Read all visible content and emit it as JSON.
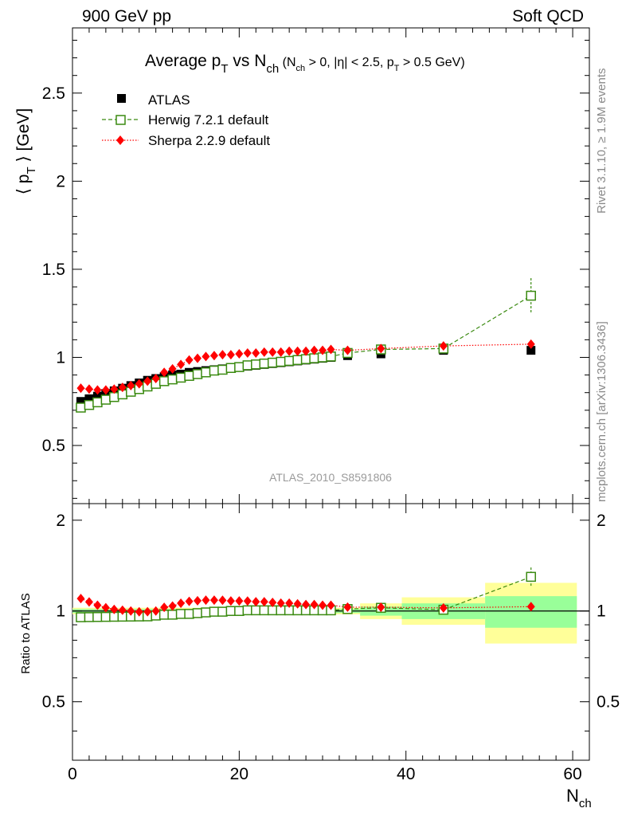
{
  "header": {
    "left": "900 GeV pp",
    "right": "Soft QCD"
  },
  "side_labels": {
    "rivet": "Rivet 3.1.10, ≥ 1.9M events",
    "mcplots": "mcplots.cern.ch [arXiv:1306.3436]"
  },
  "chart_data": {
    "type": "scatter",
    "title": {
      "main": "Average p",
      "main_sub": "T",
      "vs": " vs N",
      "vs_sub": "ch",
      "cond_open": " (N",
      "cond_sub1": "ch",
      "cond_mid": " > 0, |η| < 2.5, p",
      "cond_sub2": "T",
      "cond_close": " > 0.5 GeV)"
    },
    "analysis_label": "ATLAS_2010_S8591806",
    "ylabel_main": "⟨ p",
    "ylabel_sub": "T",
    "ylabel_tail": " ⟩ [GeV]",
    "ylabel_ratio": "Ratio to ATLAS",
    "xlabel_main": "N",
    "xlabel_sub": "ch",
    "xlim": [
      0,
      62
    ],
    "ylim": [
      0.17,
      2.87
    ],
    "ratio_ylim": [
      0.32,
      2.27
    ],
    "x_ticks": [
      "0",
      "20",
      "40",
      "60"
    ],
    "y_ticks": [
      "0.5",
      "1",
      "1.5",
      "2",
      "2.5"
    ],
    "ratio_ticks": [
      "0.5",
      "1",
      "2"
    ],
    "x": [
      1,
      2,
      3,
      4,
      5,
      6,
      7,
      8,
      9,
      10,
      11,
      12,
      13,
      14,
      15,
      16,
      17,
      18,
      19,
      20,
      21,
      22,
      23,
      24,
      25,
      26,
      27,
      28,
      29,
      30,
      31,
      33,
      37,
      44.5,
      55
    ],
    "series": [
      {
        "name": "ATLAS",
        "values": [
          0.75,
          0.765,
          0.78,
          0.795,
          0.81,
          0.825,
          0.84,
          0.855,
          0.87,
          0.88,
          0.89,
          0.9,
          0.905,
          0.915,
          0.92,
          0.925,
          0.93,
          0.935,
          0.94,
          0.945,
          0.95,
          0.955,
          0.96,
          0.965,
          0.97,
          0.975,
          0.98,
          0.985,
          0.99,
          0.995,
          1.0,
          1.01,
          1.02,
          1.04,
          1.04
        ],
        "color": "#000000"
      },
      {
        "name": "Herwig 7.2.1 default",
        "values": [
          0.715,
          0.73,
          0.745,
          0.76,
          0.775,
          0.79,
          0.805,
          0.82,
          0.835,
          0.85,
          0.865,
          0.875,
          0.885,
          0.895,
          0.905,
          0.915,
          0.925,
          0.93,
          0.94,
          0.945,
          0.955,
          0.96,
          0.965,
          0.97,
          0.975,
          0.98,
          0.985,
          0.99,
          0.995,
          1.0,
          1.005,
          1.025,
          1.045,
          1.05,
          1.35
        ],
        "color": "#3a8a10"
      },
      {
        "name": "Sherpa 2.2.9 default",
        "values": [
          0.825,
          0.82,
          0.815,
          0.815,
          0.82,
          0.83,
          0.84,
          0.85,
          0.865,
          0.88,
          0.915,
          0.935,
          0.96,
          0.985,
          0.995,
          1.005,
          1.01,
          1.015,
          1.015,
          1.02,
          1.025,
          1.025,
          1.03,
          1.03,
          1.03,
          1.035,
          1.035,
          1.035,
          1.04,
          1.04,
          1.045,
          1.04,
          1.05,
          1.065,
          1.075
        ],
        "color": "#ff0000"
      }
    ],
    "ratio_bands": [
      {
        "x0": 0,
        "x1": 31.5,
        "green": [
          0.985,
          1.015
        ],
        "yellow": [
          0.975,
          1.025
        ]
      },
      {
        "x0": 31.5,
        "x1": 34.5,
        "green": [
          0.985,
          1.015
        ],
        "yellow": [
          0.975,
          1.025
        ]
      },
      {
        "x0": 34.5,
        "x1": 39.5,
        "green": [
          0.965,
          1.035
        ],
        "yellow": [
          0.94,
          1.06
        ]
      },
      {
        "x0": 39.5,
        "x1": 49.5,
        "green": [
          0.94,
          1.06
        ],
        "yellow": [
          0.9,
          1.11
        ]
      },
      {
        "x0": 49.5,
        "x1": 60.5,
        "green": [
          0.88,
          1.12
        ],
        "yellow": [
          0.78,
          1.24
        ]
      }
    ]
  }
}
